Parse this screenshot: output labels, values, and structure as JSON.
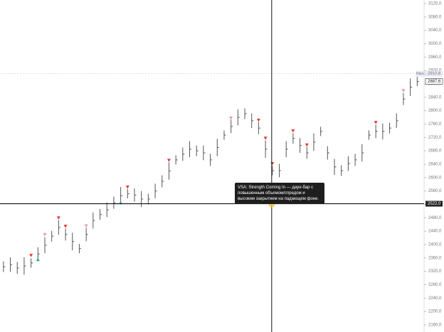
{
  "chart_data": {
    "type": "ohlc",
    "color": "#555555",
    "xlim": [
      -0.5,
      61
    ],
    "ylim": [
      2160,
      3120
    ],
    "yticks": [
      {
        "value": 3120,
        "label": "3120,0"
      },
      {
        "value": 3080,
        "label": "3080,0"
      },
      {
        "value": 3040,
        "label": "3040,0"
      },
      {
        "value": 3000,
        "label": "3000,0"
      },
      {
        "value": 2960,
        "label": "2960,0"
      },
      {
        "value": 2920,
        "label": "2920,0"
      },
      {
        "value": 2880,
        "label": "2880,0"
      },
      {
        "value": 2840,
        "label": "2840,0"
      },
      {
        "value": 2800,
        "label": "2800,0"
      },
      {
        "value": 2760,
        "label": "2760,0"
      },
      {
        "value": 2720,
        "label": "2720,0"
      },
      {
        "value": 2680,
        "label": "2680,0"
      },
      {
        "value": 2640,
        "label": "2640,0"
      },
      {
        "value": 2600,
        "label": "2600,0"
      },
      {
        "value": 2560,
        "label": "2560,0"
      },
      {
        "value": 2520,
        "label": "2520,0"
      },
      {
        "value": 2480,
        "label": "2480,0"
      },
      {
        "value": 2440,
        "label": "2440,0"
      },
      {
        "value": 2400,
        "label": "2400,0"
      },
      {
        "value": 2360,
        "label": "2360,0"
      },
      {
        "value": 2320,
        "label": "2320,0"
      },
      {
        "value": 2280,
        "label": "2280,0"
      },
      {
        "value": 2240,
        "label": "2240,0"
      },
      {
        "value": 2200,
        "label": "2200,0"
      },
      {
        "value": 2160,
        "label": "2160,0"
      }
    ],
    "lows": [
      2318,
      2318,
      2312,
      2310,
      2331,
      2352,
      2374,
      2409,
      2429,
      2412,
      2383,
      2374,
      2410,
      2448,
      2474,
      2482,
      2507,
      2520,
      2538,
      2528,
      2512,
      2520,
      2538,
      2571,
      2594,
      2639,
      2650,
      2661,
      2664,
      2652,
      2635,
      2664,
      2713,
      2733,
      2756,
      2775,
      2748,
      2730,
      2659,
      2607,
      2601,
      2661,
      2701,
      2674,
      2656,
      2680,
      2724,
      2654,
      2608,
      2605,
      2620,
      2635,
      2648,
      2713,
      2718,
      2714,
      2732,
      2748,
      2817,
      2844,
      2873
    ],
    "highs": [
      2350,
      2362,
      2348,
      2362,
      2359,
      2392,
      2422,
      2441,
      2473,
      2448,
      2435,
      2402,
      2450,
      2496,
      2506,
      2526,
      2543,
      2572,
      2566,
      2568,
      2560,
      2552,
      2582,
      2607,
      2646,
      2667,
      2690,
      2709,
      2696,
      2696,
      2671,
      2716,
      2741,
      2773,
      2804,
      2807,
      2792,
      2766,
      2711,
      2635,
      2641,
      2709,
      2733,
      2718,
      2692,
      2732,
      2752,
      2694,
      2656,
      2637,
      2664,
      2671,
      2700,
      2741,
      2758,
      2762,
      2764,
      2792,
      2853,
      2896,
      2901
    ],
    "closes": [
      2334,
      2340,
      2330,
      2336,
      2345,
      2372,
      2398,
      2425,
      2451,
      2430,
      2409,
      2388,
      2430,
      2472,
      2490,
      2504,
      2525,
      2546,
      2552,
      2548,
      2536,
      2536,
      2560,
      2589,
      2620,
      2653,
      2670,
      2685,
      2680,
      2674,
      2653,
      2690,
      2727,
      2753,
      2780,
      2791,
      2770,
      2748,
      2685,
      2621,
      2621,
      2685,
      2717,
      2696,
      2674,
      2706,
      2738,
      2674,
      2632,
      2621,
      2642,
      2653,
      2674,
      2727,
      2738,
      2738,
      2748,
      2770,
      2835,
      2870,
      2887
    ],
    "signal_colors": {
      "bearish": "#e53935",
      "bullish": "#26a69a",
      "weak": "#f48fb1"
    },
    "signals": [
      {
        "bar": 4,
        "price": 2368,
        "kind": "bearish"
      },
      {
        "bar": 8,
        "price": 2480,
        "kind": "bearish"
      },
      {
        "bar": 9,
        "price": 2455,
        "kind": "bearish"
      },
      {
        "bar": 18,
        "price": 2572,
        "kind": "bearish"
      },
      {
        "bar": 24,
        "price": 2652,
        "kind": "bearish"
      },
      {
        "bar": 37,
        "price": 2772,
        "kind": "bearish"
      },
      {
        "bar": 38,
        "price": 2718,
        "kind": "bearish"
      },
      {
        "bar": 39,
        "price": 2642,
        "kind": "bearish"
      },
      {
        "bar": 42,
        "price": 2740,
        "kind": "bearish"
      },
      {
        "bar": 44,
        "price": 2698,
        "kind": "bearish"
      },
      {
        "bar": 54,
        "price": 2765,
        "kind": "bearish"
      },
      {
        "bar": 5,
        "price": 2355,
        "kind": "bullish"
      },
      {
        "bar": 17,
        "price": 2525,
        "kind": "bullish"
      },
      {
        "bar": 6,
        "price": 2430,
        "kind": "weak"
      },
      {
        "bar": 12,
        "price": 2456,
        "kind": "weak"
      },
      {
        "bar": 33,
        "price": 2778,
        "kind": "weak"
      },
      {
        "bar": 58,
        "price": 2860,
        "kind": "weak"
      }
    ],
    "level_line": {
      "price": 2910.6,
      "label": "2910,6",
      "tag": "Нанс."
    },
    "last_price": {
      "price": 2887.6,
      "label": "2887,6"
    },
    "crosshair": {
      "bar": 38.9,
      "price": 2522,
      "label": "2522,0"
    },
    "tooltip": "VSA: Strength Coming In — даун-бар с повышенным объемом/спредом и высоким закрытием на падающем фоне."
  }
}
